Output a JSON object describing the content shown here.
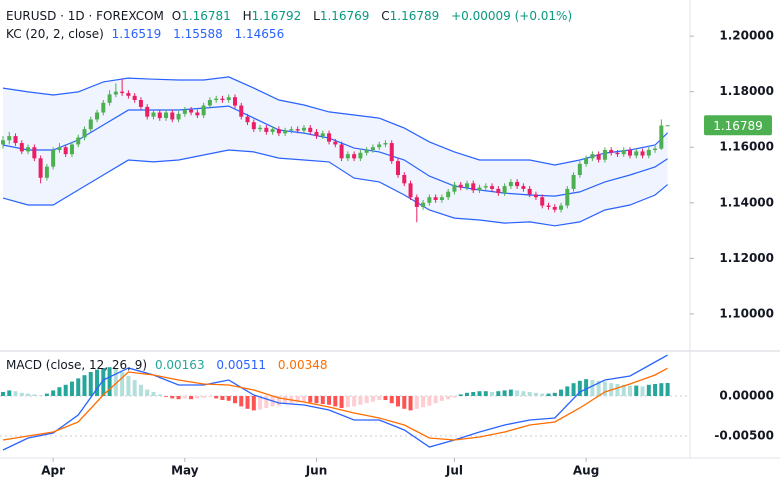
{
  "chart_data": [
    {
      "type": "candlestick",
      "legend": {
        "symbol": "EURUSD · 1D · FOREXCOM",
        "ohlc_labels": [
          "O",
          "H",
          "L",
          "C"
        ],
        "change": "+0.00009 (+0.01%)",
        "kc_title": "KC (20, 2, close)"
      },
      "up_color": "#4caf50",
      "down_color": "#e91e63",
      "price_label_color": "#4caf50",
      "ylim": [
        1.087,
        1.213
      ],
      "yticks": [
        {
          "value": 1.2,
          "label": "1.20000"
        },
        {
          "value": 1.18,
          "label": "1.18000"
        },
        {
          "value": 1.16,
          "label": "1.16000"
        },
        {
          "value": 1.14,
          "label": "1.14000"
        },
        {
          "value": 1.12,
          "label": "1.12000"
        },
        {
          "value": 1.1,
          "label": "1.10000"
        }
      ],
      "candles": [
        [
          1.161,
          1.164,
          1.1595,
          1.1625
        ],
        [
          1.1625,
          1.1655,
          1.161,
          1.164
        ],
        [
          1.164,
          1.165,
          1.1605,
          1.1615
        ],
        [
          1.1615,
          1.1625,
          1.1575,
          1.1585
        ],
        [
          1.1585,
          1.161,
          1.1575,
          1.16
        ],
        [
          1.16,
          1.161,
          1.155,
          1.156
        ],
        [
          1.156,
          1.157,
          1.147,
          1.149
        ],
        [
          1.149,
          1.154,
          1.148,
          1.153
        ],
        [
          1.153,
          1.16,
          1.152,
          1.159
        ],
        [
          1.159,
          1.1615,
          1.158,
          1.16
        ],
        [
          1.16,
          1.161,
          1.1565,
          1.1575
        ],
        [
          1.1575,
          1.162,
          1.1565,
          1.161
        ],
        [
          1.161,
          1.1645,
          1.16,
          1.1635
        ],
        [
          1.1635,
          1.1675,
          1.1625,
          1.1665
        ],
        [
          1.1665,
          1.171,
          1.1655,
          1.17
        ],
        [
          1.17,
          1.1735,
          1.169,
          1.1725
        ],
        [
          1.1725,
          1.177,
          1.1715,
          1.176
        ],
        [
          1.176,
          1.1805,
          1.175,
          1.179
        ],
        [
          1.179,
          1.183,
          1.178,
          1.18
        ],
        [
          1.18,
          1.1845,
          1.1785,
          1.1795
        ],
        [
          1.1795,
          1.1805,
          1.1775,
          1.1785
        ],
        [
          1.1785,
          1.1795,
          1.176,
          1.177
        ],
        [
          1.177,
          1.178,
          1.1735,
          1.1745
        ],
        [
          1.1745,
          1.1755,
          1.17,
          1.171
        ],
        [
          1.171,
          1.1735,
          1.17,
          1.1725
        ],
        [
          1.1725,
          1.1735,
          1.1695,
          1.1705
        ],
        [
          1.1705,
          1.1735,
          1.1695,
          1.1725
        ],
        [
          1.1725,
          1.1735,
          1.169,
          1.17
        ],
        [
          1.17,
          1.173,
          1.169,
          1.172
        ],
        [
          1.172,
          1.1745,
          1.171,
          1.1735
        ],
        [
          1.1735,
          1.1745,
          1.1715,
          1.1725
        ],
        [
          1.1725,
          1.1735,
          1.1705,
          1.1715
        ],
        [
          1.1715,
          1.176,
          1.1705,
          1.175
        ],
        [
          1.175,
          1.178,
          1.174,
          1.177
        ],
        [
          1.177,
          1.1785,
          1.176,
          1.1775
        ],
        [
          1.1775,
          1.1785,
          1.176,
          1.177
        ],
        [
          1.177,
          1.179,
          1.176,
          1.178
        ],
        [
          1.178,
          1.179,
          1.174,
          1.175
        ],
        [
          1.175,
          1.176,
          1.17,
          1.171
        ],
        [
          1.171,
          1.172,
          1.168,
          1.169
        ],
        [
          1.169,
          1.17,
          1.1655,
          1.1665
        ],
        [
          1.1665,
          1.168,
          1.1655,
          1.167
        ],
        [
          1.167,
          1.168,
          1.1645,
          1.1655
        ],
        [
          1.1655,
          1.1675,
          1.1645,
          1.1665
        ],
        [
          1.1665,
          1.1675,
          1.164,
          1.165
        ],
        [
          1.165,
          1.167,
          1.164,
          1.166
        ],
        [
          1.166,
          1.1675,
          1.165,
          1.1665
        ],
        [
          1.1665,
          1.1675,
          1.165,
          1.166
        ],
        [
          1.166,
          1.168,
          1.165,
          1.167
        ],
        [
          1.167,
          1.168,
          1.1645,
          1.1655
        ],
        [
          1.1655,
          1.1665,
          1.163,
          1.164
        ],
        [
          1.164,
          1.166,
          1.163,
          1.165
        ],
        [
          1.165,
          1.166,
          1.161,
          1.162
        ],
        [
          1.162,
          1.163,
          1.16,
          1.161
        ],
        [
          1.161,
          1.162,
          1.155,
          1.156
        ],
        [
          1.156,
          1.1585,
          1.155,
          1.1575
        ],
        [
          1.1575,
          1.1585,
          1.155,
          1.156
        ],
        [
          1.156,
          1.159,
          1.155,
          1.158
        ],
        [
          1.158,
          1.16,
          1.157,
          1.159
        ],
        [
          1.159,
          1.161,
          1.158,
          1.16
        ],
        [
          1.16,
          1.162,
          1.159,
          1.161
        ],
        [
          1.161,
          1.1625,
          1.16,
          1.1615
        ],
        [
          1.1615,
          1.1625,
          1.154,
          1.155
        ],
        [
          1.155,
          1.156,
          1.149,
          1.15
        ],
        [
          1.15,
          1.151,
          1.146,
          1.147
        ],
        [
          1.147,
          1.148,
          1.141,
          1.142
        ],
        [
          1.142,
          1.143,
          1.133,
          1.1385
        ],
        [
          1.1385,
          1.141,
          1.1375,
          1.14
        ],
        [
          1.14,
          1.143,
          1.139,
          1.142
        ],
        [
          1.142,
          1.143,
          1.14,
          1.141
        ],
        [
          1.141,
          1.143,
          1.14,
          1.142
        ],
        [
          1.142,
          1.145,
          1.141,
          1.144
        ],
        [
          1.144,
          1.1475,
          1.143,
          1.1465
        ],
        [
          1.1465,
          1.1475,
          1.1445,
          1.1455
        ],
        [
          1.1455,
          1.148,
          1.1445,
          1.147
        ],
        [
          1.147,
          1.148,
          1.1435,
          1.1445
        ],
        [
          1.1445,
          1.1465,
          1.1435,
          1.1455
        ],
        [
          1.1455,
          1.147,
          1.1445,
          1.146
        ],
        [
          1.146,
          1.147,
          1.144,
          1.145
        ],
        [
          1.145,
          1.146,
          1.1425,
          1.1435
        ],
        [
          1.1435,
          1.147,
          1.1425,
          1.146
        ],
        [
          1.146,
          1.1485,
          1.145,
          1.1475
        ],
        [
          1.1475,
          1.1485,
          1.145,
          1.146
        ],
        [
          1.146,
          1.147,
          1.144,
          1.145
        ],
        [
          1.145,
          1.146,
          1.142,
          1.143
        ],
        [
          1.143,
          1.144,
          1.141,
          1.142
        ],
        [
          1.142,
          1.143,
          1.138,
          1.139
        ],
        [
          1.139,
          1.14,
          1.1375,
          1.1385
        ],
        [
          1.1385,
          1.1395,
          1.1365,
          1.1375
        ],
        [
          1.1375,
          1.14,
          1.1365,
          1.139
        ],
        [
          1.139,
          1.146,
          1.138,
          1.145
        ],
        [
          1.145,
          1.151,
          1.144,
          1.15
        ],
        [
          1.15,
          1.155,
          1.149,
          1.154
        ],
        [
          1.154,
          1.157,
          1.153,
          1.156
        ],
        [
          1.156,
          1.1585,
          1.155,
          1.1575
        ],
        [
          1.1575,
          1.1585,
          1.1545,
          1.1555
        ],
        [
          1.1555,
          1.16,
          1.1545,
          1.159
        ],
        [
          1.159,
          1.16,
          1.157,
          1.158
        ],
        [
          1.158,
          1.159,
          1.1565,
          1.1575
        ],
        [
          1.1575,
          1.16,
          1.1565,
          1.159
        ],
        [
          1.159,
          1.16,
          1.156,
          1.157
        ],
        [
          1.157,
          1.1595,
          1.156,
          1.1585
        ],
        [
          1.1585,
          1.1595,
          1.156,
          1.157
        ],
        [
          1.157,
          1.16,
          1.156,
          1.159
        ],
        [
          1.159,
          1.1605,
          1.158,
          1.1595
        ],
        [
          1.1595,
          1.17,
          1.159,
          1.1678
        ],
        [
          1.16781,
          1.16792,
          1.16769,
          1.16789
        ]
      ],
      "bands": {
        "band_fill": "#2962ff",
        "x": [
          0,
          4,
          8,
          12,
          16,
          20,
          24,
          28,
          32,
          36,
          40,
          44,
          48,
          52,
          56,
          60,
          64,
          68,
          72,
          76,
          80,
          84,
          88,
          92,
          96,
          100,
          104,
          106
        ],
        "series": [
          {
            "color": "#2962ff",
            "values": [
              1.1813,
              1.1799,
              1.1788,
              1.1799,
              1.1835,
              1.1849,
              1.1845,
              1.1842,
              1.1842,
              1.1853,
              1.1813,
              1.177,
              1.1752,
              1.1727,
              1.1716,
              1.1705,
              1.1669,
              1.1619,
              1.1583,
              1.1554,
              1.1554,
              1.1554,
              1.1536,
              1.1554,
              1.1579,
              1.159,
              1.1608,
              1.16519
            ]
          },
          {
            "color": "#2962ff",
            "values": [
              1.1608,
              1.159,
              1.159,
              1.1626,
              1.168,
              1.1734,
              1.1734,
              1.1734,
              1.1741,
              1.1748,
              1.1705,
              1.1662,
              1.1651,
              1.1633,
              1.1597,
              1.1583,
              1.1554,
              1.1496,
              1.146,
              1.1446,
              1.1435,
              1.1428,
              1.1424,
              1.1439,
              1.1475,
              1.15,
              1.1529,
              1.15588
            ]
          },
          {
            "color": "#2962ff",
            "values": [
              1.1417,
              1.1392,
              1.1392,
              1.1446,
              1.15,
              1.1554,
              1.1547,
              1.1554,
              1.1572,
              1.159,
              1.1583,
              1.1561,
              1.1554,
              1.1547,
              1.1489,
              1.1475,
              1.1428,
              1.1374,
              1.1345,
              1.1338,
              1.1327,
              1.1331,
              1.1317,
              1.1331,
              1.1374,
              1.1392,
              1.1428,
              1.14656
            ]
          }
        ]
      }
    },
    {
      "type": "macd",
      "title": "MACD (close, 12, 26, 9)",
      "ylim": [
        -0.00775,
        0.0055
      ],
      "yticks": [
        {
          "value": 0,
          "label": "0.00000"
        },
        {
          "value": -0.005,
          "label": "-0.00500"
        }
      ],
      "grid": true,
      "xticks": [
        {
          "value": 8,
          "label": "Apr"
        },
        {
          "value": 29,
          "label": "May"
        },
        {
          "value": 50,
          "label": "Jun"
        },
        {
          "value": 72,
          "label": "Jul"
        },
        {
          "value": 93,
          "label": "Aug"
        }
      ],
      "hist_colors": [
        "#26a69a",
        "#b2dfdb",
        "#ff5252",
        "#ffcdd2"
      ],
      "histogram": [
        0.0005,
        0.0007,
        0.0006,
        0.0004,
        0.0003,
        0.0002,
        0.0001,
        0.0003,
        0.0007,
        0.0011,
        0.0014,
        0.0018,
        0.0022,
        0.0026,
        0.003,
        0.0033,
        0.0035,
        0.0036,
        0.0034,
        0.003,
        0.0025,
        0.002,
        0.0014,
        0.0008,
        0.0005,
        0.0002,
        -0.0001,
        -0.0003,
        -0.0004,
        -0.0003,
        -0.0004,
        -0.0003,
        -0.0002,
        -0.0001,
        -0.0003,
        -0.0005,
        -0.0006,
        -0.0009,
        -0.0013,
        -0.0016,
        -0.0018,
        -0.0017,
        -0.0015,
        -0.0013,
        -0.0012,
        -0.001,
        -0.0009,
        -0.0008,
        -0.0007,
        -0.0008,
        -0.0009,
        -0.001,
        -0.0011,
        -0.0013,
        -0.0015,
        -0.0014,
        -0.0013,
        -0.0011,
        -0.0009,
        -0.0007,
        -0.0005,
        -0.0005,
        -0.0009,
        -0.0013,
        -0.0016,
        -0.0018,
        -0.0016,
        -0.0014,
        -0.0012,
        -0.0009,
        -0.0006,
        -0.0004,
        -0.0002,
        0.0002,
        0.0004,
        0.0005,
        0.0006,
        0.0006,
        0.0005,
        0.0006,
        0.0007,
        0.0008,
        0.0007,
        0.0006,
        0.0005,
        0.0004,
        0.0003,
        0.0003,
        0.0004,
        0.0008,
        0.0012,
        0.0016,
        0.0019,
        0.0021,
        0.002,
        0.0019,
        0.0018,
        0.0016,
        0.0015,
        0.0014,
        0.0013,
        0.0013,
        0.0012,
        0.0014,
        0.0015,
        0.0016,
        0.00163
      ],
      "x": [
        0,
        4,
        8,
        12,
        16,
        20,
        24,
        28,
        32,
        36,
        40,
        44,
        48,
        52,
        56,
        60,
        64,
        68,
        72,
        76,
        80,
        84,
        88,
        92,
        96,
        100,
        104,
        106
      ],
      "series": [
        {
          "color": "#2962ff",
          "values": [
            -0.00675,
            -0.00525,
            -0.00463,
            -0.00238,
            0.002,
            0.0035,
            0.00263,
            0.00138,
            0.00138,
            0.002,
            0.00013,
            -0.00088,
            -0.00113,
            -0.00175,
            -0.003,
            -0.003,
            -0.00425,
            -0.00638,
            -0.0055,
            -0.0045,
            -0.00363,
            -0.003,
            -0.00275,
            0.0005,
            0.002,
            0.0025,
            0.00425,
            0.00511
          ]
        },
        {
          "color": "#ff6d00",
          "values": [
            -0.0055,
            -0.005,
            -0.0045,
            -0.00325,
            0.00013,
            0.003,
            0.00263,
            0.002,
            0.0015,
            0.00138,
            0.00075,
            -0.00025,
            -0.00075,
            -0.00138,
            -0.00213,
            -0.00275,
            -0.00363,
            -0.00525,
            -0.0055,
            -0.00513,
            -0.0045,
            -0.00363,
            -0.00325,
            -0.0015,
            0.0005,
            0.0015,
            0.00263,
            0.00348
          ]
        }
      ]
    }
  ]
}
